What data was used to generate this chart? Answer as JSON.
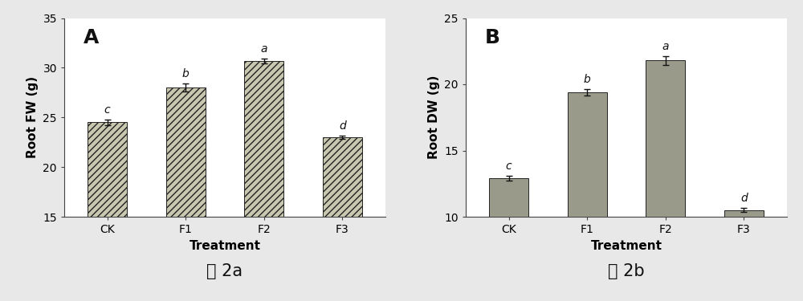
{
  "panel_A": {
    "categories": [
      "CK",
      "F1",
      "F2",
      "F3"
    ],
    "values": [
      24.5,
      28.0,
      30.7,
      23.0
    ],
    "errors": [
      0.3,
      0.4,
      0.25,
      0.2
    ],
    "letters": [
      "c",
      "b",
      "a",
      "d"
    ],
    "ylabel": "Root FW (g)",
    "xlabel": "Treatment",
    "panel_label": "A",
    "ylim": [
      15,
      35
    ],
    "yticks": [
      15,
      20,
      25,
      30,
      35
    ],
    "bar_color": "#c8c8b0",
    "bar_hatch": "////",
    "caption": "图 2a"
  },
  "panel_B": {
    "categories": [
      "CK",
      "F1",
      "F2",
      "F3"
    ],
    "values": [
      12.9,
      19.4,
      21.8,
      10.5
    ],
    "errors": [
      0.2,
      0.25,
      0.35,
      0.15
    ],
    "letters": [
      "c",
      "b",
      "a",
      "d"
    ],
    "ylabel": "Root DW (g)",
    "xlabel": "Treatment",
    "panel_label": "B",
    "ylim": [
      10,
      25
    ],
    "yticks": [
      10,
      15,
      20,
      25
    ],
    "bar_color": "#9a9a8a",
    "bar_hatch": "",
    "caption": "图 2b"
  },
  "fig_bg_color": "#e8e8e8",
  "axis_bg_color": "#ffffff",
  "bar_edge_color": "#222222",
  "letter_fontsize": 10,
  "panel_label_fontsize": 18,
  "axis_label_fontsize": 11,
  "tick_fontsize": 10,
  "caption_fontsize": 15,
  "bar_width": 0.5
}
